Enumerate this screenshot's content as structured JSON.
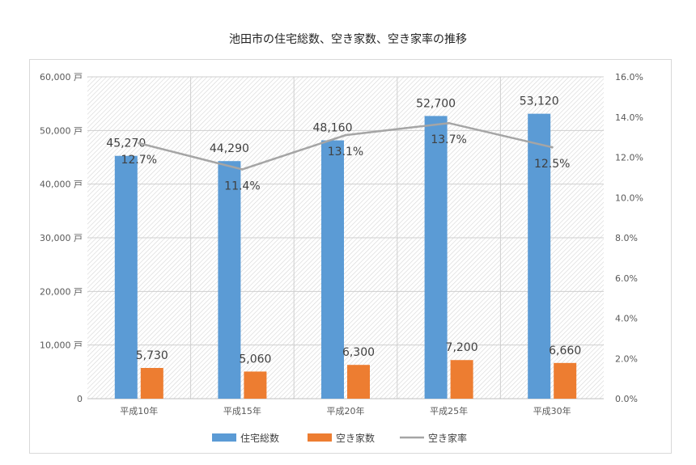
{
  "chart_data": {
    "type": "bar",
    "title": "池田市の住宅総数、空き家数、空き家率の推移",
    "categories": [
      "平成10年",
      "平成15年",
      "平成20年",
      "平成25年",
      "平成30年"
    ],
    "series": [
      {
        "name": "住宅総数",
        "type": "bar",
        "axis": "left",
        "color": "#5b9bd5",
        "values": [
          45270,
          44290,
          48160,
          52700,
          53120
        ],
        "labels": [
          "45,270",
          "44,290",
          "48,160",
          "52,700",
          "53,120"
        ]
      },
      {
        "name": "空き家数",
        "type": "bar",
        "axis": "left",
        "color": "#ed7d31",
        "values": [
          5730,
          5060,
          6300,
          7200,
          6660
        ],
        "labels": [
          "5,730",
          "5,060",
          "6,300",
          "7,200",
          "6,660"
        ]
      },
      {
        "name": "空き家率",
        "type": "line",
        "axis": "right",
        "color": "#a5a5a5",
        "values": [
          12.7,
          11.4,
          13.1,
          13.7,
          12.5
        ],
        "labels": [
          "12.7%",
          "11.4%",
          "13.1%",
          "13.7%",
          "12.5%"
        ]
      }
    ],
    "ylim": [
      0,
      60000
    ],
    "y_ticks": [
      "0",
      "10,000 戸",
      "20,000 戸",
      "30,000 戸",
      "40,000 戸",
      "50,000 戸",
      "60,000 戸"
    ],
    "y2lim": [
      0,
      16
    ],
    "y2_ticks": [
      "0.0%",
      "2.0%",
      "4.0%",
      "6.0%",
      "8.0%",
      "10.0%",
      "12.0%",
      "14.0%",
      "16.0%"
    ],
    "grid": true,
    "legend": "bottom"
  }
}
